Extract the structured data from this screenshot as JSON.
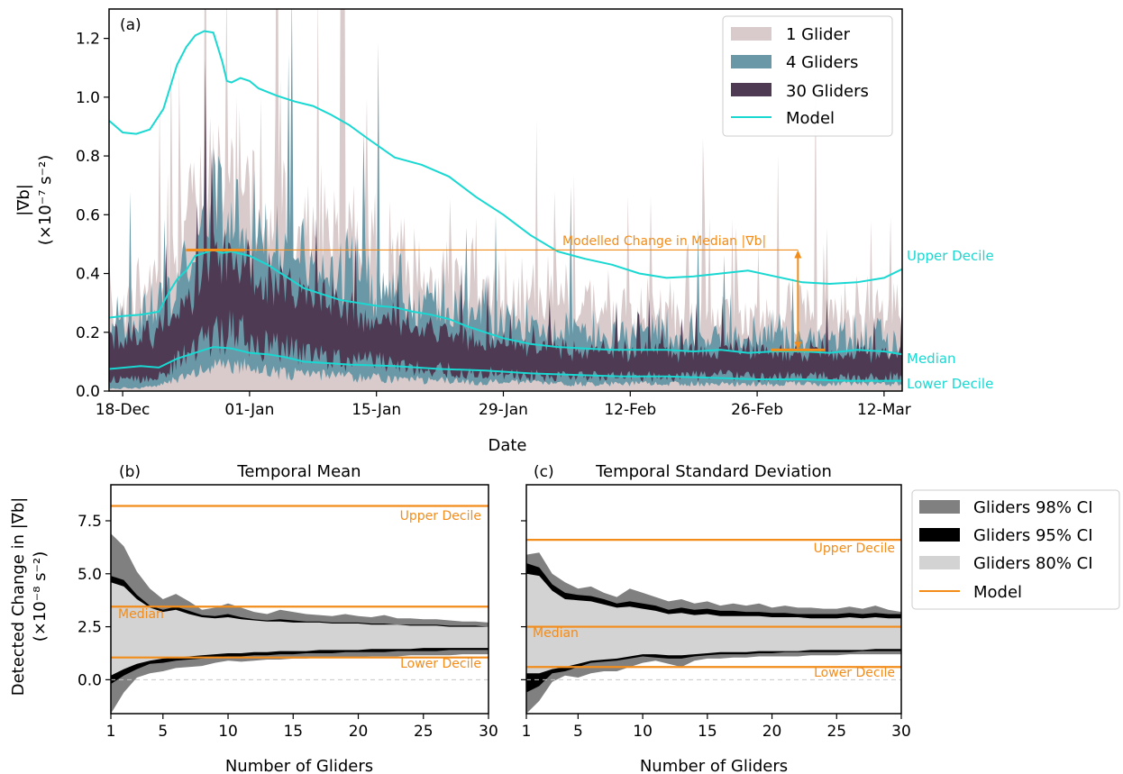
{
  "colors": {
    "glider1": "#d9cbcb",
    "glider4": "#6b98a6",
    "glider30": "#4e3a53",
    "model": "#19d8d2",
    "orange": "#f28c1a",
    "ci98": "#808080",
    "ci95": "#000000",
    "ci80": "#d3d3d3",
    "zero_line": "#c8c8c8"
  },
  "panel_a": {
    "label": "(a)",
    "ylabel_line1": "|∇b|",
    "ylabel_line2": "(×10⁻⁷ s⁻²)",
    "xlabel": "Date",
    "xticks": [
      "18-Dec",
      "01-Jan",
      "15-Jan",
      "29-Jan",
      "12-Feb",
      "26-Feb",
      "12-Mar"
    ],
    "yticks": [
      "0.0",
      "0.2",
      "0.4",
      "0.6",
      "0.8",
      "1.0",
      "1.2"
    ],
    "legend": [
      "1 Glider",
      "4 Gliders",
      "30 Gliders",
      "Model"
    ],
    "annotation": "Modelled Change in Median |∇b|",
    "side_labels": {
      "upper": "Upper Decile",
      "median": "Median",
      "lower": "Lower Decile"
    }
  },
  "panel_b": {
    "label": "(b)",
    "title": "Temporal Mean",
    "xlabel": "Number of Gliders",
    "ylabel_line1": "Detected Change in |∇b|",
    "ylabel_line2": "(×10⁻⁸ s⁻²)",
    "xticks": [
      "1",
      "5",
      "10",
      "15",
      "20",
      "25",
      "30"
    ],
    "yticks": [
      "0.0",
      "2.5",
      "5.0",
      "7.5"
    ],
    "line_labels": {
      "upper": "Upper Decile",
      "median": "Median",
      "lower": "Lower Decile"
    }
  },
  "panel_c": {
    "label": "(c)",
    "title": "Temporal Standard Deviation",
    "xlabel": "Number of Gliders",
    "xticks": [
      "1",
      "5",
      "10",
      "15",
      "20",
      "25",
      "30"
    ],
    "line_labels": {
      "upper": "Upper Decile",
      "median": "Median",
      "lower": "Lower Decile"
    }
  },
  "legend_bc": [
    "Gliders 98% CI",
    "Gliders 95% CI",
    "Gliders 80% CI",
    "Model"
  ],
  "chart_data": [
    {
      "type": "area",
      "panel": "a",
      "x_unit": "days since 18-Dec",
      "xlim": [
        -1.5,
        86
      ],
      "ylim": [
        0,
        1.3
      ],
      "model": {
        "upper_decile": {
          "x": [
            -1.5,
            0,
            1.5,
            3,
            4.5,
            6,
            7,
            8,
            9,
            10,
            11,
            11.5,
            12,
            13,
            14,
            15,
            17,
            19,
            21,
            23,
            25,
            27,
            30,
            33,
            36,
            39,
            42,
            45,
            48,
            51,
            54,
            57,
            60,
            63,
            66,
            69,
            72,
            75,
            78,
            81,
            84,
            86
          ],
          "y": [
            0.92,
            0.88,
            0.875,
            0.89,
            0.96,
            1.11,
            1.17,
            1.21,
            1.225,
            1.22,
            1.12,
            1.055,
            1.05,
            1.065,
            1.055,
            1.03,
            1.005,
            0.985,
            0.97,
            0.94,
            0.905,
            0.86,
            0.795,
            0.77,
            0.73,
            0.66,
            0.6,
            0.53,
            0.475,
            0.45,
            0.43,
            0.4,
            0.385,
            0.39,
            0.4,
            0.41,
            0.39,
            0.37,
            0.365,
            0.37,
            0.385,
            0.415
          ]
        },
        "median": {
          "x": [
            -1.5,
            0,
            2,
            4,
            5,
            6,
            7,
            8,
            9,
            10,
            11,
            12,
            14,
            16,
            18,
            20,
            22,
            24,
            26,
            28,
            30,
            32,
            34,
            36,
            38,
            40,
            42,
            45,
            48,
            51,
            54,
            57,
            60,
            63,
            66,
            69,
            72,
            75,
            78,
            81,
            84,
            86
          ],
          "y": [
            0.25,
            0.255,
            0.26,
            0.27,
            0.33,
            0.38,
            0.41,
            0.46,
            0.47,
            0.48,
            0.47,
            0.475,
            0.46,
            0.43,
            0.39,
            0.35,
            0.33,
            0.31,
            0.3,
            0.29,
            0.285,
            0.27,
            0.26,
            0.245,
            0.22,
            0.2,
            0.18,
            0.16,
            0.15,
            0.145,
            0.14,
            0.14,
            0.14,
            0.135,
            0.14,
            0.13,
            0.135,
            0.135,
            0.13,
            0.14,
            0.135,
            0.125
          ]
        },
        "lower_decile": {
          "x": [
            -1.5,
            2,
            4,
            6,
            8,
            10,
            12,
            14,
            16,
            18,
            20,
            25,
            30,
            35,
            40,
            45,
            50,
            55,
            60,
            65,
            70,
            75,
            80,
            86
          ],
          "y": [
            0.075,
            0.085,
            0.08,
            0.11,
            0.13,
            0.15,
            0.145,
            0.13,
            0.125,
            0.115,
            0.1,
            0.09,
            0.085,
            0.075,
            0.07,
            0.06,
            0.055,
            0.05,
            0.05,
            0.045,
            0.04,
            0.04,
            0.035,
            0.035
          ]
        }
      },
      "annotation": {
        "x_start": 10,
        "x_end": 74.5,
        "y_from": 0.14,
        "y_to": 0.48
      },
      "glider_bands": [
        {
          "series": "30 Gliders",
          "x": [
            -1.5,
            2,
            4,
            6,
            8,
            10,
            12,
            14,
            16,
            18,
            20,
            22,
            24,
            26,
            28,
            30,
            32,
            34,
            36,
            38,
            40,
            42,
            45,
            48,
            51,
            54,
            57,
            60,
            63,
            66,
            69,
            72,
            75,
            78,
            81,
            84,
            86
          ],
          "low": [
            0.04,
            0.04,
            0.05,
            0.1,
            0.15,
            0.19,
            0.2,
            0.18,
            0.15,
            0.14,
            0.13,
            0.12,
            0.11,
            0.1,
            0.1,
            0.09,
            0.08,
            0.075,
            0.07,
            0.065,
            0.06,
            0.06,
            0.055,
            0.05,
            0.05,
            0.05,
            0.05,
            0.05,
            0.05,
            0.055,
            0.05,
            0.05,
            0.05,
            0.05,
            0.045,
            0.05,
            0.05
          ],
          "high": [
            0.19,
            0.2,
            0.23,
            0.28,
            0.37,
            0.5,
            0.48,
            0.43,
            0.38,
            0.36,
            0.34,
            0.32,
            0.3,
            0.28,
            0.26,
            0.26,
            0.24,
            0.22,
            0.2,
            0.19,
            0.18,
            0.17,
            0.15,
            0.15,
            0.145,
            0.14,
            0.14,
            0.145,
            0.14,
            0.145,
            0.14,
            0.14,
            0.14,
            0.14,
            0.13,
            0.14,
            0.13
          ]
        },
        {
          "series": "4 Gliders",
          "x": [
            -1.5,
            2,
            4,
            6,
            8,
            10,
            12,
            14,
            16,
            18,
            20,
            22,
            24,
            26,
            28,
            30,
            32,
            34,
            36,
            38,
            40,
            42,
            45,
            48,
            51,
            54,
            57,
            60,
            63,
            66,
            69,
            72,
            75,
            78,
            81,
            84,
            86
          ],
          "low": [
            0.01,
            0.01,
            0.02,
            0.04,
            0.06,
            0.08,
            0.09,
            0.08,
            0.07,
            0.06,
            0.06,
            0.055,
            0.05,
            0.045,
            0.045,
            0.04,
            0.04,
            0.035,
            0.035,
            0.03,
            0.03,
            0.03,
            0.03,
            0.025,
            0.025,
            0.025,
            0.025,
            0.025,
            0.025,
            0.025,
            0.025,
            0.025,
            0.025,
            0.025,
            0.025,
            0.025,
            0.025
          ],
          "high": [
            0.26,
            0.27,
            0.33,
            0.42,
            0.53,
            0.67,
            0.66,
            0.6,
            0.54,
            0.5,
            0.47,
            0.45,
            0.43,
            0.41,
            0.39,
            0.37,
            0.35,
            0.33,
            0.31,
            0.29,
            0.27,
            0.25,
            0.23,
            0.22,
            0.21,
            0.2,
            0.2,
            0.2,
            0.2,
            0.2,
            0.2,
            0.2,
            0.2,
            0.19,
            0.19,
            0.19,
            0.18
          ]
        },
        {
          "series": "1 Glider",
          "x": [
            -1.5,
            2,
            4,
            6,
            8,
            10,
            12,
            14,
            16,
            18,
            20,
            22,
            24,
            26,
            28,
            30,
            32,
            34,
            36,
            38,
            40,
            42,
            45,
            48,
            51,
            54,
            57,
            60,
            63,
            66,
            69,
            72,
            75,
            78,
            81,
            84,
            86
          ],
          "low": [
            0,
            0,
            0,
            0,
            0,
            0,
            0,
            0,
            0,
            0,
            0,
            0,
            0,
            0,
            0,
            0,
            0,
            0,
            0,
            0,
            0,
            0,
            0,
            0,
            0,
            0,
            0,
            0,
            0,
            0,
            0,
            0,
            0,
            0,
            0,
            0,
            0
          ],
          "high": [
            0.33,
            0.35,
            0.43,
            0.55,
            0.7,
            0.85,
            0.86,
            0.8,
            0.74,
            0.68,
            0.63,
            0.6,
            0.57,
            0.54,
            0.51,
            0.48,
            0.46,
            0.44,
            0.42,
            0.4,
            0.38,
            0.36,
            0.34,
            0.32,
            0.31,
            0.3,
            0.3,
            0.3,
            0.3,
            0.3,
            0.3,
            0.3,
            0.3,
            0.29,
            0.29,
            0.29,
            0.28
          ]
        }
      ]
    },
    {
      "type": "area",
      "panel": "b",
      "xlim": [
        1,
        30
      ],
      "ylim": [
        -1.6,
        9.2
      ],
      "model_lines": {
        "upper_decile": 8.2,
        "median": 3.45,
        "lower_decile": 1.05
      },
      "x": [
        1,
        2,
        3,
        4,
        5,
        6,
        7,
        8,
        9,
        10,
        11,
        12,
        13,
        14,
        15,
        16,
        17,
        18,
        19,
        20,
        21,
        22,
        23,
        24,
        25,
        26,
        27,
        28,
        29,
        30
      ],
      "ci98_low": [
        -1.6,
        -0.6,
        0.1,
        0.3,
        0.4,
        0.55,
        0.6,
        0.65,
        0.8,
        0.9,
        0.85,
        0.9,
        0.95,
        0.95,
        1.0,
        1.0,
        1.05,
        1.05,
        1.05,
        1.05,
        1.1,
        1.1,
        1.1,
        1.15,
        1.15,
        1.15,
        1.15,
        1.2,
        1.2,
        1.2
      ],
      "ci98_high": [
        6.9,
        6.3,
        5.1,
        4.3,
        3.8,
        4.05,
        3.7,
        3.3,
        3.4,
        3.6,
        3.4,
        3.2,
        3.1,
        3.3,
        3.2,
        3.1,
        3.05,
        3.0,
        3.1,
        3.0,
        2.95,
        3.05,
        2.9,
        2.9,
        2.85,
        2.85,
        2.8,
        2.75,
        2.75,
        2.7
      ],
      "ci95_low": [
        -0.2,
        0.2,
        0.5,
        0.75,
        0.8,
        0.9,
        0.95,
        1.0,
        1.05,
        1.1,
        1.1,
        1.15,
        1.15,
        1.2,
        1.2,
        1.25,
        1.25,
        1.25,
        1.3,
        1.3,
        1.3,
        1.3,
        1.35,
        1.35,
        1.35,
        1.35,
        1.4,
        1.4,
        1.4,
        1.4
      ],
      "ci95_high": [
        4.9,
        4.7,
        4.0,
        3.5,
        3.3,
        3.45,
        3.25,
        3.05,
        3.0,
        3.1,
        2.95,
        2.85,
        2.8,
        2.85,
        2.8,
        2.75,
        2.75,
        2.7,
        2.7,
        2.7,
        2.65,
        2.65,
        2.6,
        2.6,
        2.6,
        2.6,
        2.55,
        2.55,
        2.55,
        2.5
      ],
      "ci80_low": [
        0.2,
        0.5,
        0.75,
        0.9,
        1.0,
        1.05,
        1.1,
        1.15,
        1.2,
        1.25,
        1.25,
        1.3,
        1.3,
        1.35,
        1.35,
        1.35,
        1.4,
        1.4,
        1.4,
        1.4,
        1.45,
        1.45,
        1.45,
        1.45,
        1.5,
        1.5,
        1.5,
        1.5,
        1.5,
        1.5
      ],
      "ci80_high": [
        4.6,
        4.4,
        3.8,
        3.4,
        3.2,
        3.3,
        3.1,
        2.95,
        2.9,
        2.95,
        2.85,
        2.8,
        2.75,
        2.75,
        2.7,
        2.7,
        2.7,
        2.65,
        2.65,
        2.65,
        2.6,
        2.6,
        2.6,
        2.55,
        2.55,
        2.55,
        2.5,
        2.5,
        2.5,
        2.5
      ]
    },
    {
      "type": "area",
      "panel": "c",
      "xlim": [
        1,
        30
      ],
      "ylim": [
        -1.6,
        9.2
      ],
      "model_lines": {
        "upper_decile": 6.6,
        "median": 2.5,
        "lower_decile": 0.6
      },
      "x": [
        1,
        2,
        3,
        4,
        5,
        6,
        7,
        8,
        9,
        10,
        11,
        12,
        13,
        14,
        15,
        16,
        17,
        18,
        19,
        20,
        21,
        22,
        23,
        24,
        25,
        26,
        27,
        28,
        29,
        30
      ],
      "ci98_low": [
        -1.6,
        -1.0,
        -0.1,
        0.2,
        0.1,
        0.3,
        0.4,
        0.4,
        0.6,
        0.8,
        0.9,
        0.75,
        0.6,
        0.9,
        1.0,
        1.0,
        1.05,
        1.05,
        1.1,
        1.1,
        1.1,
        1.1,
        1.15,
        1.15,
        1.15,
        1.2,
        1.2,
        1.2,
        1.2,
        1.2
      ],
      "ci98_high": [
        5.9,
        6.0,
        5.0,
        4.6,
        4.3,
        4.4,
        4.1,
        3.9,
        4.3,
        4.1,
        3.9,
        3.7,
        3.8,
        3.6,
        3.7,
        3.5,
        3.6,
        3.5,
        3.6,
        3.4,
        3.5,
        3.4,
        3.4,
        3.35,
        3.35,
        3.45,
        3.35,
        3.5,
        3.3,
        3.2
      ],
      "ci95_low": [
        -0.6,
        -0.3,
        0.3,
        0.4,
        0.6,
        0.8,
        0.85,
        0.9,
        1.0,
        1.1,
        1.05,
        1.0,
        1.0,
        1.1,
        1.15,
        1.2,
        1.2,
        1.2,
        1.25,
        1.25,
        1.3,
        1.3,
        1.3,
        1.3,
        1.3,
        1.3,
        1.35,
        1.35,
        1.35,
        1.35
      ],
      "ci95_high": [
        5.5,
        5.3,
        4.5,
        4.1,
        4.0,
        3.95,
        3.8,
        3.6,
        3.7,
        3.6,
        3.5,
        3.3,
        3.4,
        3.3,
        3.35,
        3.25,
        3.25,
        3.2,
        3.2,
        3.15,
        3.15,
        3.1,
        3.1,
        3.1,
        3.1,
        3.15,
        3.1,
        3.15,
        3.1,
        3.1
      ],
      "ci80_low": [
        0.3,
        0.3,
        0.5,
        0.6,
        0.75,
        0.9,
        0.95,
        1.0,
        1.1,
        1.2,
        1.2,
        1.15,
        1.15,
        1.2,
        1.25,
        1.3,
        1.3,
        1.3,
        1.35,
        1.35,
        1.35,
        1.35,
        1.4,
        1.4,
        1.4,
        1.4,
        1.4,
        1.45,
        1.45,
        1.45
      ],
      "ci80_high": [
        5.0,
        4.9,
        4.2,
        3.8,
        3.75,
        3.7,
        3.55,
        3.4,
        3.45,
        3.35,
        3.25,
        3.1,
        3.15,
        3.05,
        3.1,
        3.0,
        3.0,
        3.0,
        3.0,
        2.95,
        2.95,
        2.95,
        2.9,
        2.9,
        2.9,
        2.95,
        2.9,
        2.95,
        2.9,
        2.9
      ]
    }
  ]
}
